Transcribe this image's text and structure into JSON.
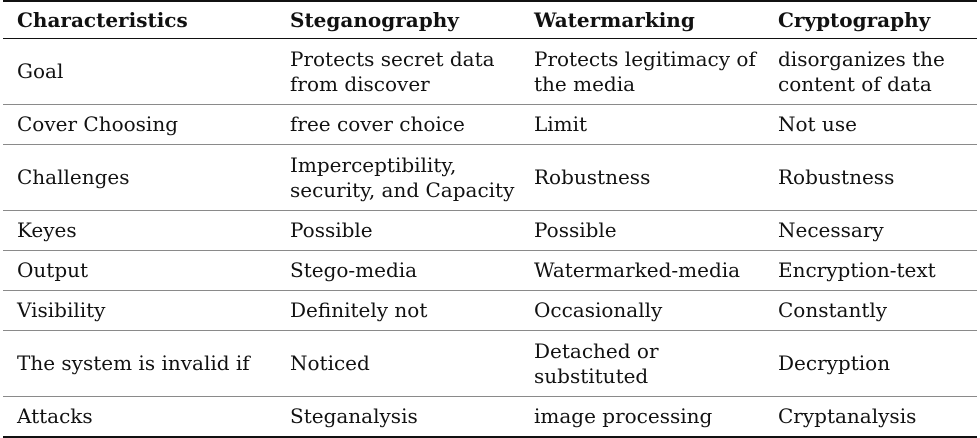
{
  "table": {
    "headers": [
      "Characteristics",
      "Steganography",
      "Watermarking",
      "Cryptography"
    ],
    "rows": [
      [
        "Goal",
        "Protects secret data from discover",
        "Protects legitimacy of the media",
        "disorganizes the content of data"
      ],
      [
        "Cover Choosing",
        "free cover choice",
        "Limit",
        "Not use"
      ],
      [
        "Challenges",
        "Imperceptibility, security, and Capacity",
        "Robustness",
        "Robustness"
      ],
      [
        "Keyes",
        "Possible",
        "Possible",
        "Necessary"
      ],
      [
        "Output",
        "Stego-media",
        "Watermarked-media",
        "Encryption-text"
      ],
      [
        "Visibility",
        "Definitely not",
        "Occasionally",
        "Constantly"
      ],
      [
        "The system is invalid if",
        "Noticed",
        "Detached or substituted",
        "Decryption"
      ],
      [
        "Attacks",
        "Steganalysis",
        "image processing",
        "Cryptanalysis"
      ]
    ]
  }
}
